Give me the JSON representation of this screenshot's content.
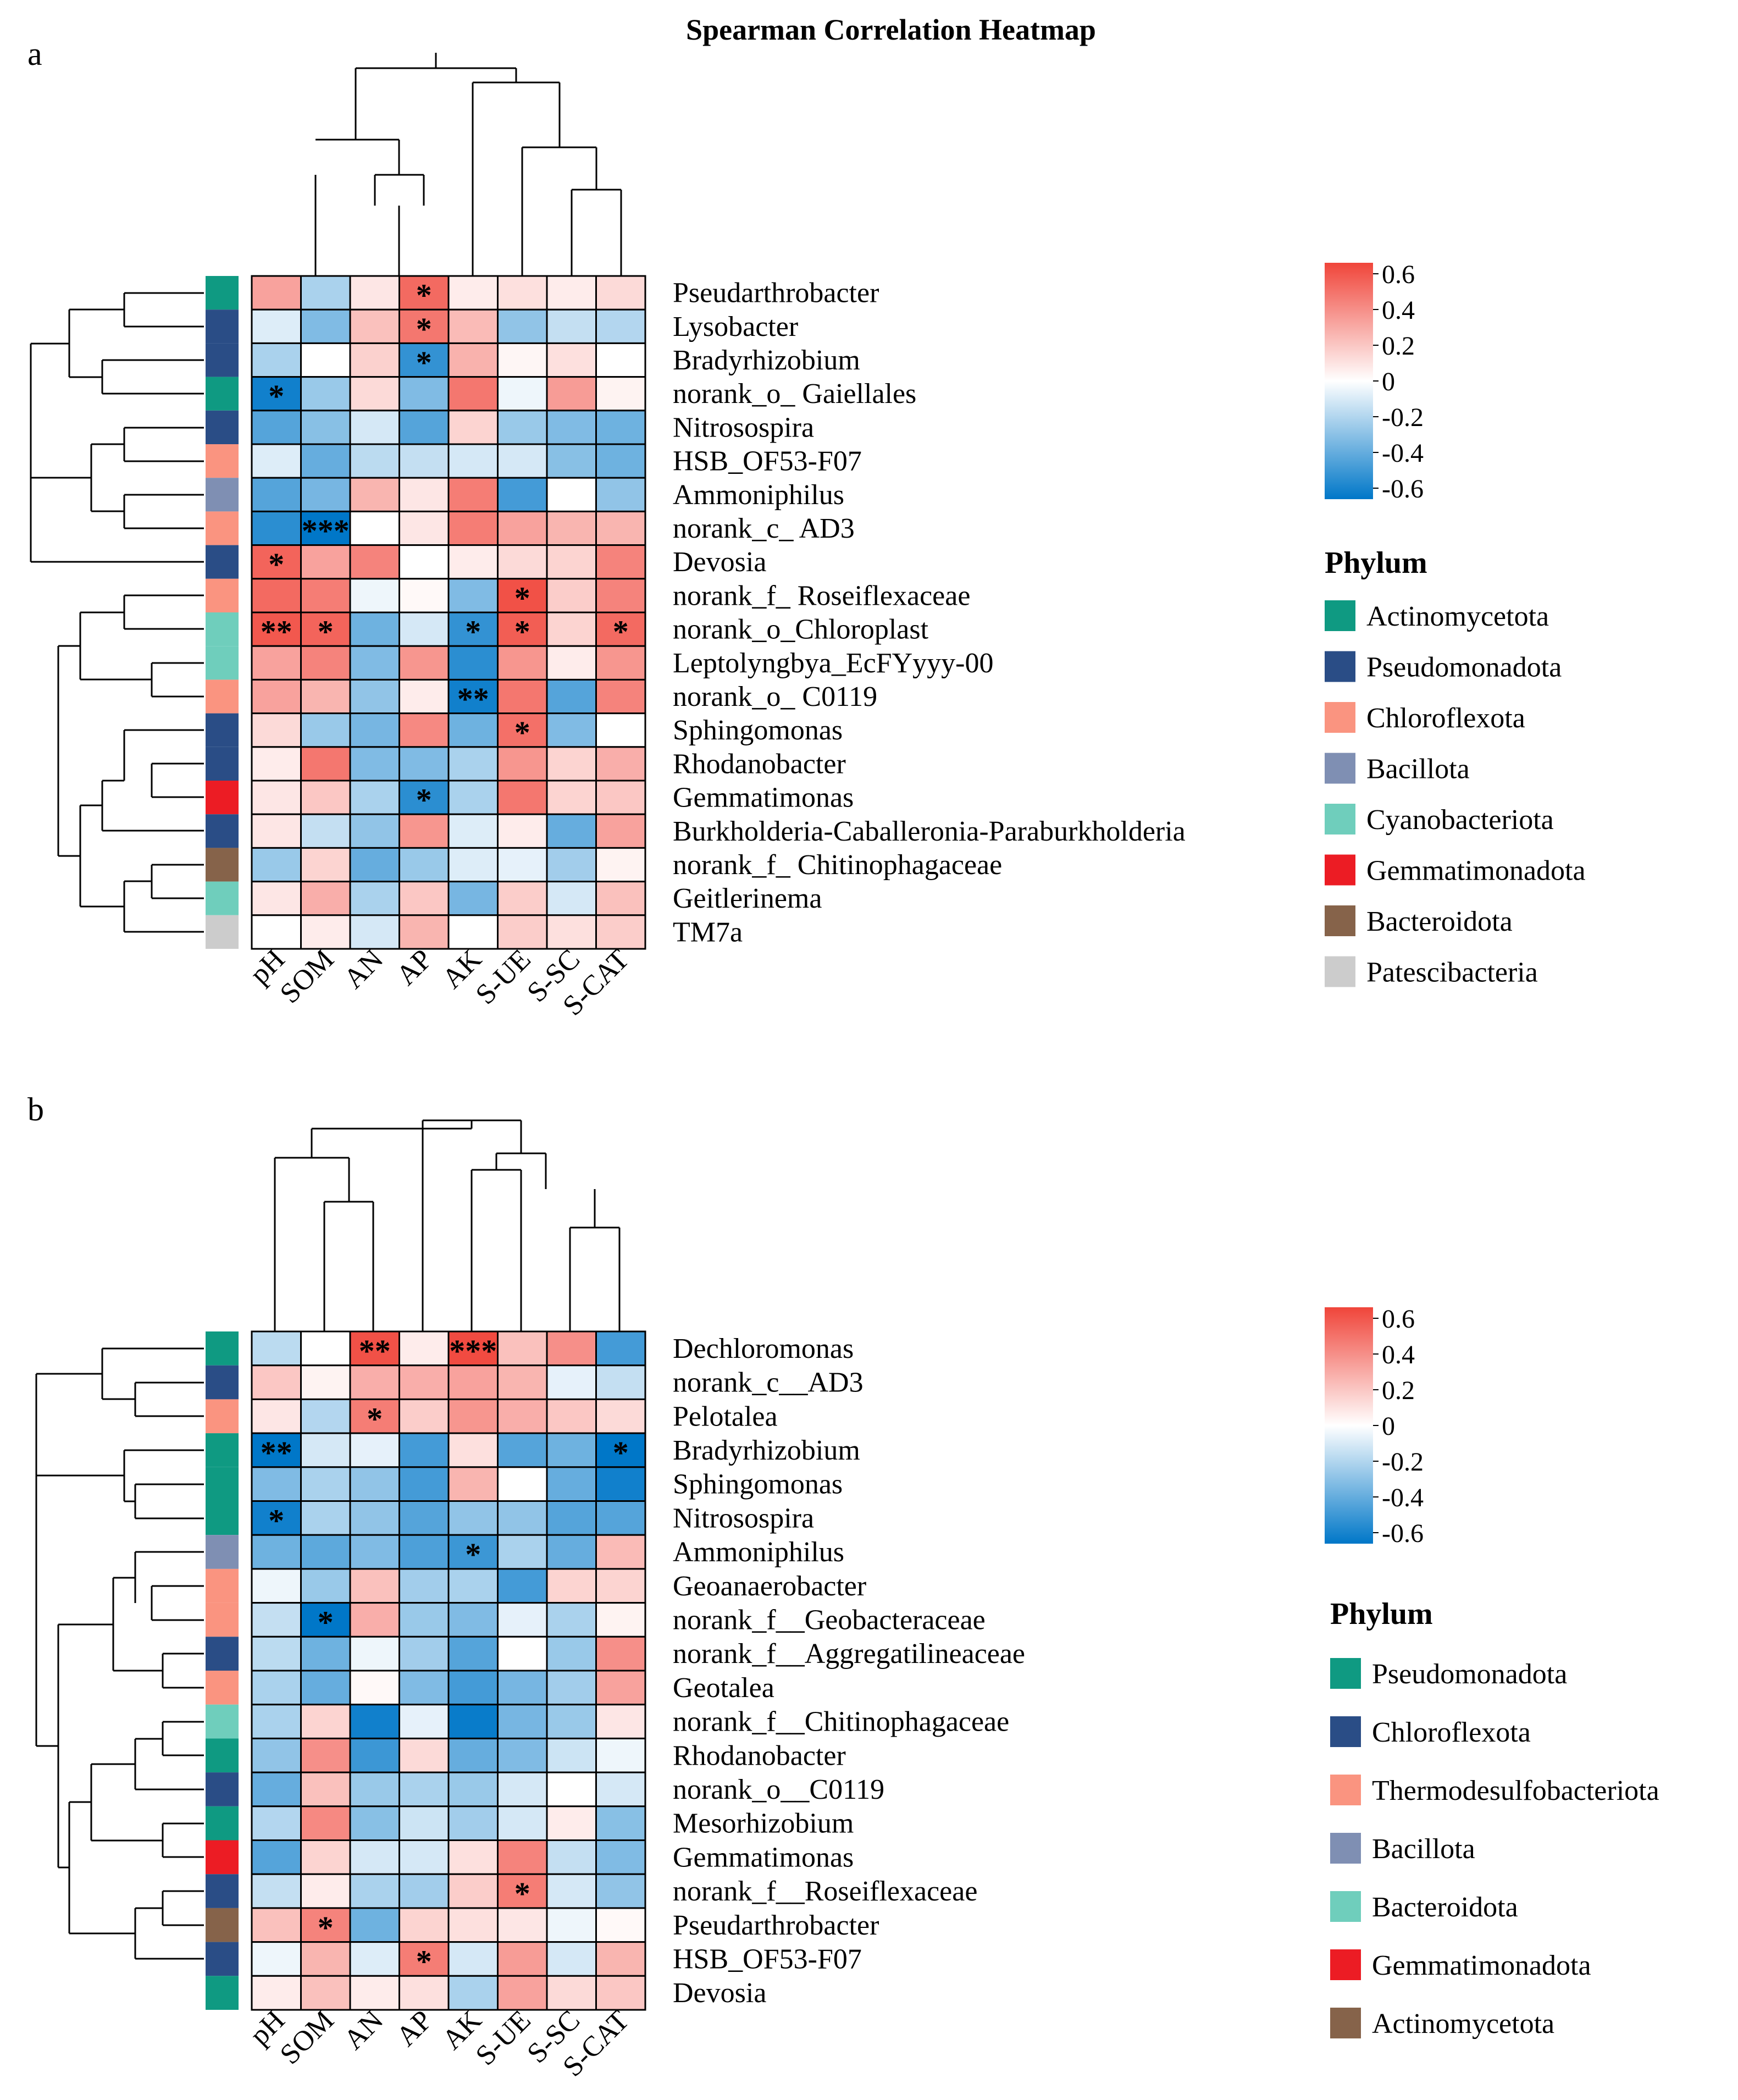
{
  "chart_data": {
    "title": "Spearman Correlation Heatmap",
    "type": "heatmap",
    "colorscale": {
      "low": "#0077c8",
      "mid": "#ffffff",
      "high": "#f0453a",
      "range": [
        -0.6,
        0.6
      ],
      "ticks": [
        "0.6",
        "0.4",
        "0.2",
        "0",
        "-0.2",
        "-0.4",
        "-0.6"
      ]
    },
    "panels": [
      {
        "label": "a",
        "columns": [
          "pH",
          "SOM",
          "AN",
          "AP",
          "AK",
          "S-UE",
          "S-SC",
          "S-CAT"
        ],
        "rows": [
          "Pseudarthrobacter",
          "Lysobacter",
          "Bradyrhizobium",
          "norank_o_ Gaiellales",
          "Nitrosospira",
          "HSB_OF53-F07",
          "Ammoniphilus",
          "norank_c_ AD3",
          "Devosia",
          "norank_f_ Roseiflexaceae",
          "norank_o_Chloroplast",
          "Leptolyngbya_EcFYyyy-00",
          "norank_o_ C0119",
          "Sphingomonas",
          "Rhodanobacter",
          "Gemmatimonas",
          "Burkholderia-Caballeronia-Paraburkholderia",
          "norank_f_ Chitinophagaceae",
          "Geitlerinema",
          "TM7a"
        ],
        "row_phylum": [
          0,
          1,
          1,
          0,
          1,
          2,
          3,
          2,
          1,
          2,
          4,
          4,
          2,
          1,
          1,
          5,
          1,
          6,
          4,
          7
        ],
        "phyla": [
          {
            "name": "Actinomycetota",
            "color": "#0f9a82"
          },
          {
            "name": "Pseudomonadota",
            "color": "#2a4d86"
          },
          {
            "name": "Chloroflexota",
            "color": "#fa9480"
          },
          {
            "name": "Bacillota",
            "color": "#7f8fb3"
          },
          {
            "name": "Cyanobacteriota",
            "color": "#6fcebc"
          },
          {
            "name": "Gemmatimonadota",
            "color": "#ec1c24"
          },
          {
            "name": "Bacteroidota",
            "color": "#86634a"
          },
          {
            "name": "Patescibacteria",
            "color": "#cccccc"
          }
        ],
        "values": [
          [
            0.3,
            -0.2,
            0.08,
            0.48,
            0.06,
            0.1,
            0.06,
            0.12
          ],
          [
            -0.08,
            -0.3,
            0.2,
            0.44,
            0.22,
            -0.26,
            -0.14,
            -0.18
          ],
          [
            -0.2,
            0.0,
            0.15,
            -0.48,
            0.25,
            0.03,
            0.1,
            0.0
          ],
          [
            -0.56,
            -0.24,
            0.12,
            -0.3,
            0.44,
            -0.04,
            0.32,
            0.04
          ],
          [
            -0.4,
            -0.28,
            -0.1,
            -0.4,
            0.14,
            -0.24,
            -0.3,
            -0.34
          ],
          [
            -0.08,
            -0.36,
            -0.16,
            -0.14,
            -0.1,
            -0.1,
            -0.28,
            -0.34
          ],
          [
            -0.4,
            -0.32,
            0.24,
            0.08,
            0.42,
            -0.44,
            0.0,
            -0.26
          ],
          [
            -0.5,
            -0.64,
            0.0,
            0.08,
            0.42,
            0.3,
            0.24,
            0.24
          ],
          [
            0.5,
            0.3,
            0.4,
            0.0,
            0.06,
            0.12,
            0.14,
            0.4
          ],
          [
            0.48,
            0.42,
            -0.04,
            0.02,
            -0.3,
            0.56,
            0.16,
            0.4
          ],
          [
            0.54,
            0.5,
            -0.34,
            -0.1,
            -0.48,
            0.52,
            0.14,
            0.48
          ],
          [
            0.3,
            0.4,
            -0.3,
            0.34,
            -0.5,
            0.34,
            0.06,
            0.34
          ],
          [
            0.3,
            0.24,
            -0.26,
            0.06,
            -0.56,
            0.44,
            -0.4,
            0.4
          ],
          [
            0.12,
            -0.24,
            -0.32,
            0.38,
            -0.34,
            0.46,
            -0.3,
            0.0
          ],
          [
            0.06,
            0.44,
            -0.3,
            -0.3,
            -0.2,
            0.34,
            0.14,
            0.26
          ],
          [
            0.08,
            0.18,
            -0.2,
            -0.5,
            -0.2,
            0.44,
            0.14,
            0.18
          ],
          [
            0.08,
            -0.14,
            -0.26,
            0.34,
            -0.08,
            0.06,
            -0.36,
            0.3
          ],
          [
            -0.24,
            0.14,
            -0.36,
            -0.24,
            -0.08,
            -0.06,
            -0.22,
            0.04
          ],
          [
            0.08,
            0.26,
            -0.2,
            0.18,
            -0.32,
            0.16,
            -0.1,
            0.2
          ],
          [
            0.0,
            0.06,
            -0.1,
            0.24,
            0.0,
            0.16,
            0.1,
            0.16
          ]
        ],
        "stars": [
          [
            "",
            "",
            "",
            "*",
            "",
            "",
            "",
            ""
          ],
          [
            "",
            "",
            "",
            "*",
            "",
            "",
            "",
            ""
          ],
          [
            "",
            "",
            "",
            "*",
            "",
            "",
            "",
            ""
          ],
          [
            "*",
            "",
            "",
            "",
            "",
            "",
            "",
            ""
          ],
          [
            "",
            "",
            "",
            "",
            "",
            "",
            "",
            ""
          ],
          [
            "",
            "",
            "",
            "",
            "",
            "",
            "",
            ""
          ],
          [
            "",
            "",
            "",
            "",
            "",
            "",
            "",
            ""
          ],
          [
            "",
            "***",
            "",
            "",
            "",
            "",
            "",
            ""
          ],
          [
            "*",
            "",
            "",
            "",
            "",
            "",
            "",
            ""
          ],
          [
            "",
            "",
            "",
            "",
            "",
            "*",
            "",
            ""
          ],
          [
            "**",
            "*",
            "",
            "",
            "*",
            "*",
            "",
            "*"
          ],
          [
            "",
            "",
            "",
            "",
            "",
            "",
            "",
            ""
          ],
          [
            "",
            "",
            "",
            "",
            "**",
            "",
            "",
            ""
          ],
          [
            "",
            "",
            "",
            "",
            "",
            "*",
            "",
            ""
          ],
          [
            "",
            "",
            "",
            "",
            "",
            "",
            "",
            ""
          ],
          [
            "",
            "",
            "",
            "*",
            "",
            "",
            "",
            ""
          ],
          [
            "",
            "",
            "",
            "",
            "",
            "",
            "",
            ""
          ],
          [
            "",
            "",
            "",
            "",
            "",
            "",
            "",
            ""
          ],
          [
            "",
            "",
            "",
            "",
            "",
            "",
            "",
            ""
          ],
          [
            "",
            "",
            "",
            "",
            "",
            "",
            "",
            ""
          ]
        ],
        "legend_title": "Phylum"
      },
      {
        "label": "b",
        "columns": [
          "pH",
          "SOM",
          "AN",
          "AP",
          "AK",
          "S-UE",
          "S-SC",
          "S-CAT"
        ],
        "rows": [
          "Dechloromonas",
          "norank_c__AD3",
          "Pelotalea",
          "Bradyrhizobium",
          "Sphingomonas",
          "Nitrosospira",
          "Ammoniphilus",
          "Geoanaerobacter",
          "norank_f__Geobacteraceae",
          "norank_f__Aggregatilineaceae",
          "Geotalea",
          "norank_f__Chitinophagaceae",
          "Rhodanobacter",
          "norank_o__C0119",
          "Mesorhizobium",
          "Gemmatimonas",
          "norank_f__Roseiflexaceae",
          "Pseudarthrobacter",
          "HSB_OF53-F07",
          "Devosia"
        ],
        "row_phylum": [
          0,
          1,
          2,
          0,
          0,
          0,
          3,
          2,
          2,
          1,
          2,
          4,
          0,
          1,
          0,
          5,
          1,
          6,
          1,
          0
        ],
        "phyla": [
          {
            "name": "Pseudomonadota",
            "color": "#0f9a82"
          },
          {
            "name": "Chloroflexota",
            "color": "#2a4d86"
          },
          {
            "name": "Thermodesulfobacteriota",
            "color": "#fa9480"
          },
          {
            "name": "Bacillota",
            "color": "#7f8fb3"
          },
          {
            "name": "Bacteroidota",
            "color": "#6fcebc"
          },
          {
            "name": "Gemmatimonadota",
            "color": "#ec1c24"
          },
          {
            "name": "Actinomycetota",
            "color": "#86634a"
          }
        ],
        "values": [
          [
            -0.16,
            0.0,
            0.56,
            0.06,
            0.58,
            0.2,
            0.36,
            -0.44
          ],
          [
            0.18,
            0.04,
            0.26,
            0.26,
            0.3,
            0.24,
            -0.06,
            -0.14
          ],
          [
            0.08,
            -0.18,
            0.42,
            0.16,
            0.34,
            0.26,
            0.18,
            0.12
          ],
          [
            -0.66,
            -0.1,
            -0.06,
            -0.44,
            0.1,
            -0.4,
            -0.34,
            -0.66
          ],
          [
            -0.3,
            -0.2,
            -0.26,
            -0.44,
            0.24,
            0.0,
            -0.36,
            -0.56
          ],
          [
            -0.56,
            -0.2,
            -0.26,
            -0.4,
            -0.26,
            -0.26,
            -0.4,
            -0.4
          ],
          [
            -0.34,
            -0.38,
            -0.3,
            -0.42,
            -0.46,
            -0.2,
            -0.36,
            0.22
          ],
          [
            -0.04,
            -0.24,
            0.2,
            -0.22,
            -0.2,
            -0.44,
            0.14,
            0.14
          ],
          [
            -0.14,
            -0.6,
            0.26,
            -0.24,
            -0.3,
            -0.06,
            -0.2,
            0.04
          ],
          [
            -0.16,
            -0.34,
            -0.04,
            -0.22,
            -0.4,
            0.0,
            -0.24,
            0.36
          ],
          [
            -0.2,
            -0.36,
            0.02,
            -0.3,
            -0.44,
            -0.32,
            -0.22,
            0.3
          ],
          [
            -0.2,
            0.14,
            -0.56,
            -0.06,
            -0.58,
            -0.32,
            -0.24,
            0.08
          ],
          [
            -0.26,
            0.36,
            -0.46,
            0.12,
            -0.36,
            -0.3,
            -0.12,
            -0.04
          ],
          [
            -0.36,
            0.2,
            -0.24,
            -0.2,
            -0.24,
            -0.1,
            0.0,
            -0.1
          ],
          [
            -0.18,
            0.38,
            -0.28,
            -0.12,
            -0.22,
            -0.1,
            0.06,
            -0.28
          ],
          [
            -0.4,
            0.14,
            -0.1,
            -0.1,
            0.1,
            0.4,
            -0.14,
            -0.3
          ],
          [
            -0.14,
            0.06,
            -0.2,
            -0.22,
            0.16,
            0.42,
            -0.1,
            -0.26
          ],
          [
            0.2,
            0.4,
            -0.34,
            0.14,
            0.1,
            0.08,
            -0.04,
            0.02
          ],
          [
            -0.04,
            0.24,
            -0.08,
            0.42,
            -0.1,
            0.32,
            -0.1,
            0.24
          ],
          [
            0.06,
            0.2,
            0.06,
            0.1,
            -0.2,
            0.3,
            0.12,
            0.18
          ]
        ],
        "stars": [
          [
            "",
            "",
            "**",
            "",
            "***",
            "",
            "",
            ""
          ],
          [
            "",
            "",
            "",
            "",
            "",
            "",
            "",
            ""
          ],
          [
            "",
            "",
            "*",
            "",
            "",
            "",
            "",
            ""
          ],
          [
            "**",
            "",
            "",
            "",
            "",
            "",
            "",
            "*"
          ],
          [
            "",
            "",
            "",
            "",
            "",
            "",
            "",
            ""
          ],
          [
            "*",
            "",
            "",
            "",
            "",
            "",
            "",
            ""
          ],
          [
            "",
            "",
            "",
            "",
            "*",
            "",
            "",
            ""
          ],
          [
            "",
            "",
            "",
            "",
            "",
            "",
            "",
            ""
          ],
          [
            "",
            "*",
            "",
            "",
            "",
            "",
            "",
            ""
          ],
          [
            "",
            "",
            "",
            "",
            "",
            "",
            "",
            ""
          ],
          [
            "",
            "",
            "",
            "",
            "",
            "",
            "",
            ""
          ],
          [
            "",
            "",
            "",
            "",
            "",
            "",
            "",
            ""
          ],
          [
            "",
            "",
            "",
            "",
            "",
            "",
            "",
            ""
          ],
          [
            "",
            "",
            "",
            "",
            "",
            "",
            "",
            ""
          ],
          [
            "",
            "",
            "",
            "",
            "",
            "",
            "",
            ""
          ],
          [
            "",
            "",
            "",
            "",
            "",
            "",
            "",
            ""
          ],
          [
            "",
            "",
            "",
            "",
            "",
            "*",
            "",
            ""
          ],
          [
            "",
            "*",
            "",
            "",
            "",
            "",
            "",
            ""
          ],
          [
            "",
            "",
            "",
            "*",
            "",
            "",
            "",
            ""
          ],
          [
            "",
            "",
            "",
            "",
            "",
            "",
            "",
            ""
          ]
        ],
        "legend_title": "Phylum"
      }
    ]
  }
}
